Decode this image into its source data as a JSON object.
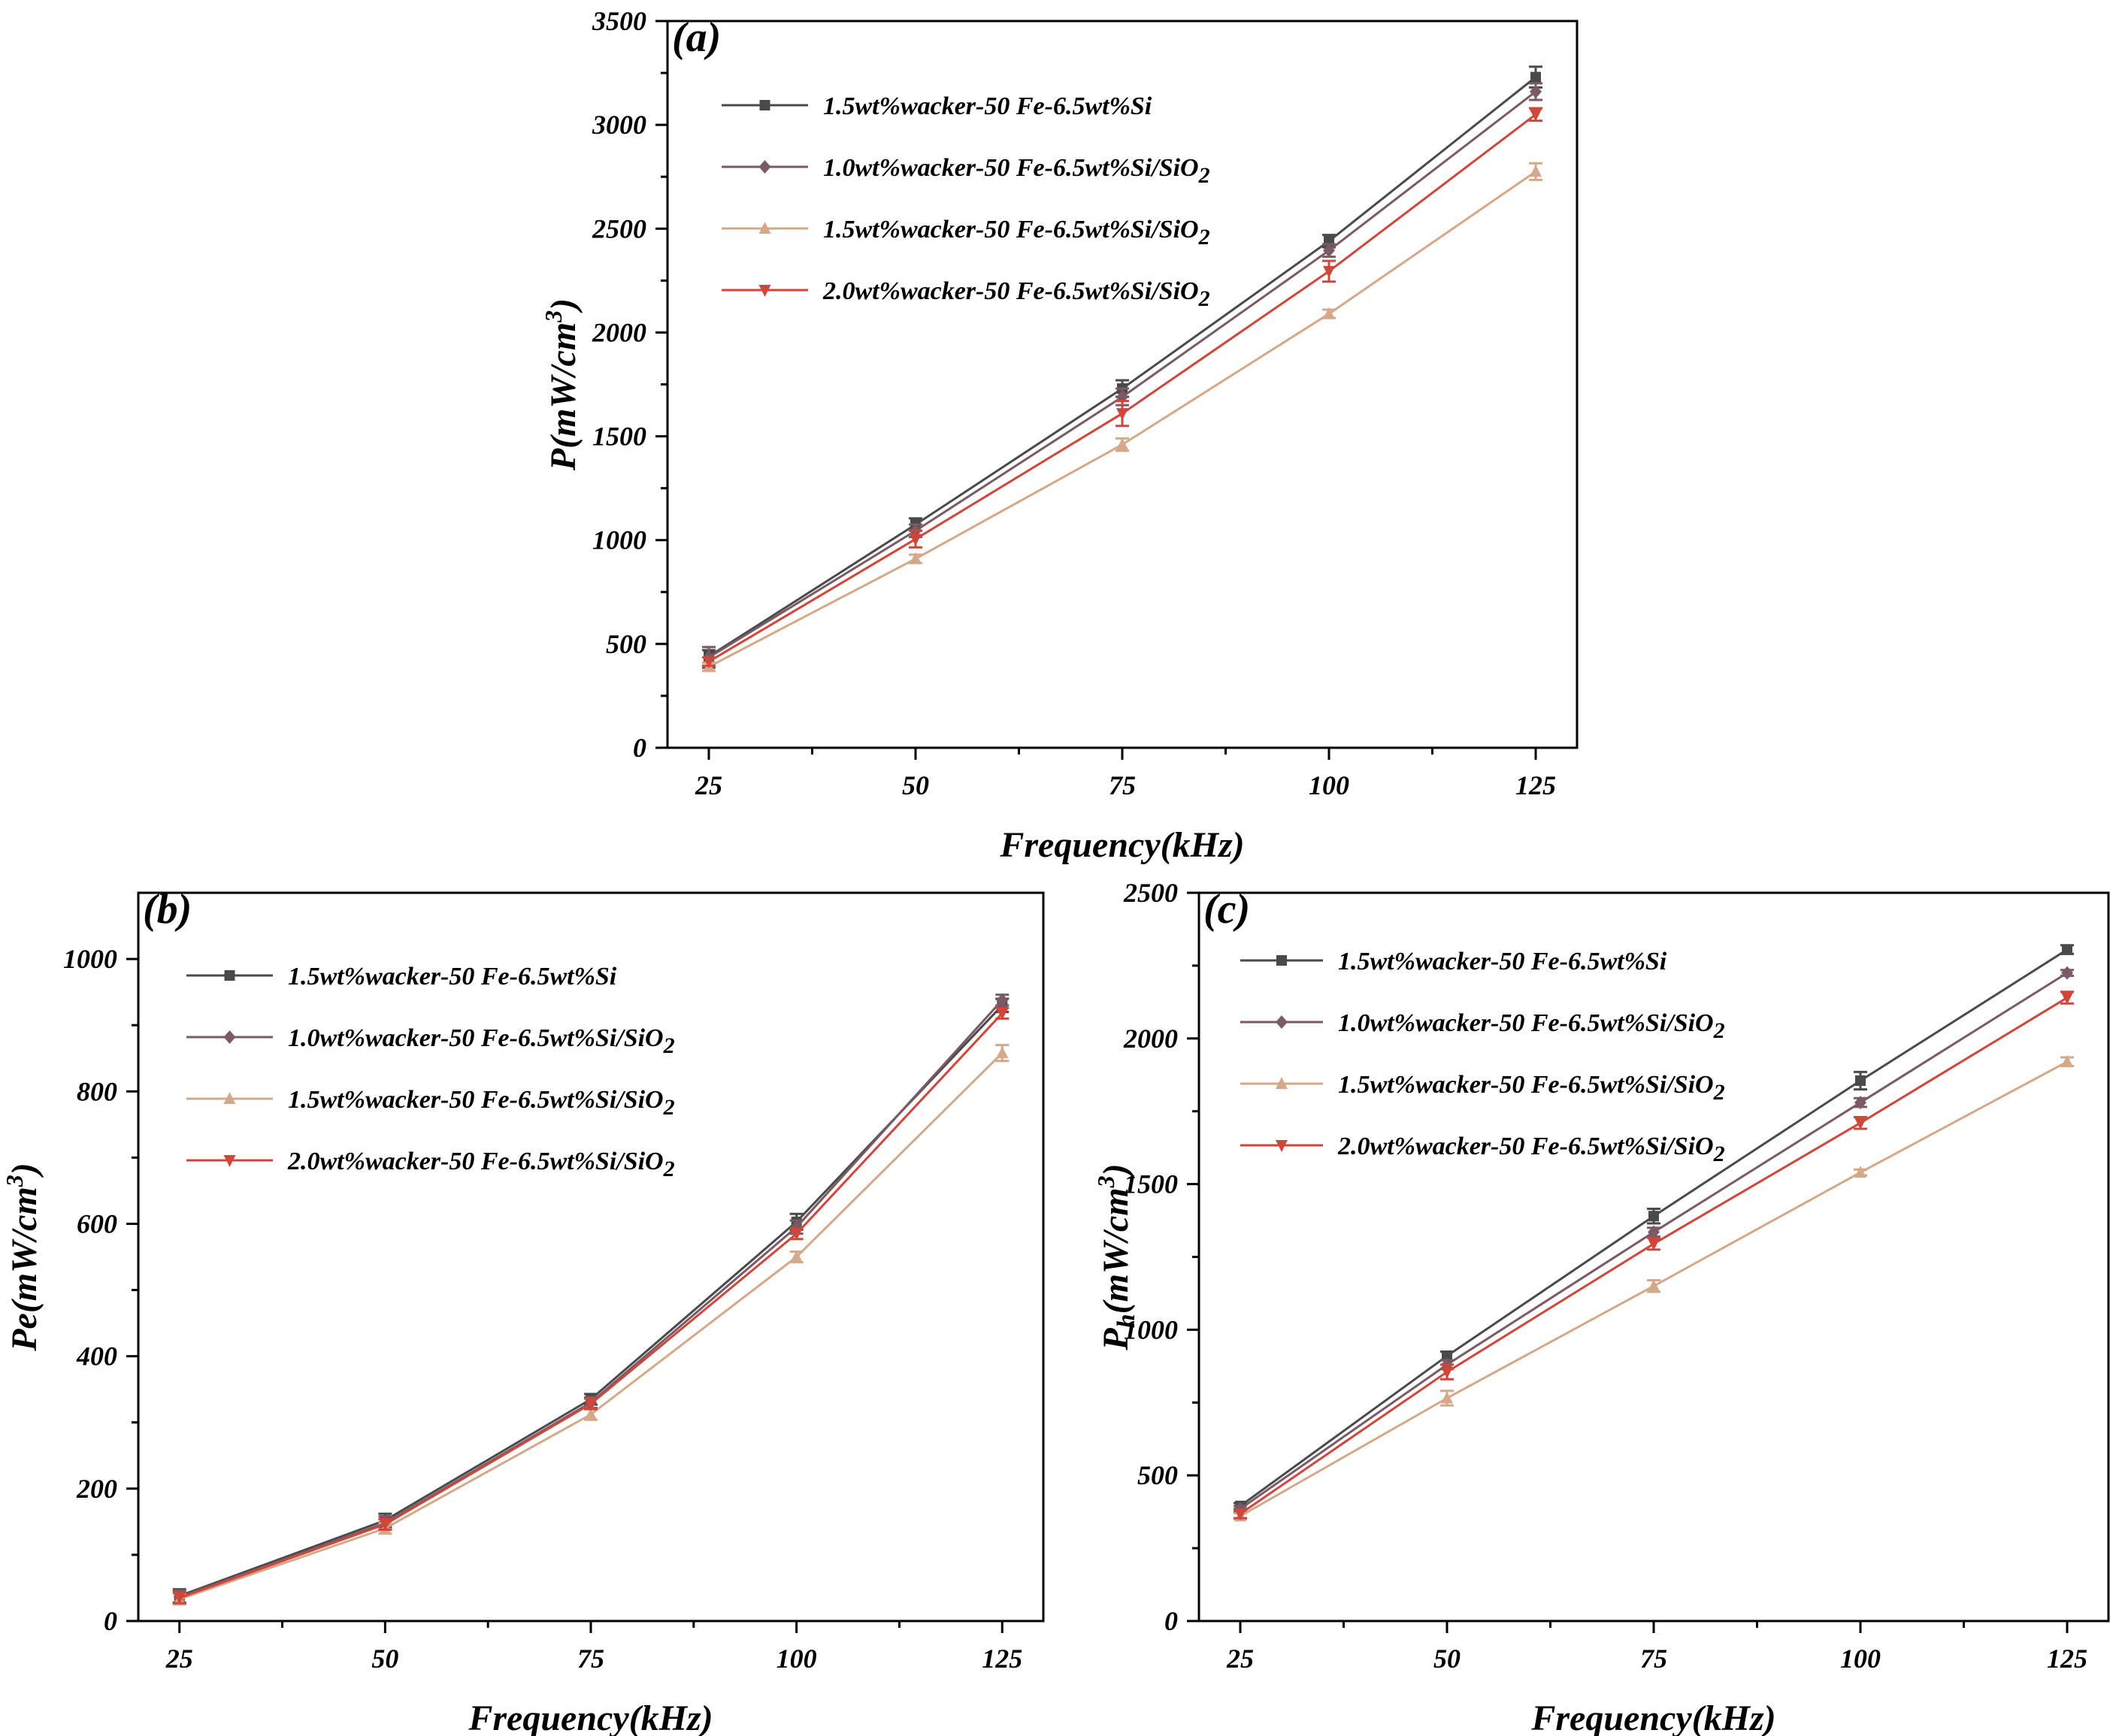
{
  "colors": {
    "series": [
      "#4a4a4a",
      "#7a5a66",
      "#d4a888",
      "#d0463a"
    ],
    "axis": "#000000"
  },
  "series_markers": [
    "square",
    "diamond",
    "triangle-up",
    "triangle-down"
  ],
  "chart_data": [
    {
      "id": "a",
      "panel_label": "(a)",
      "type": "line",
      "xlabel": "Frequency(kHz)",
      "ylabel_main": "P(mW/cm",
      "ylabel_sub": "",
      "ylabel_sup": "3",
      "ylabel_end": ")",
      "x": [
        25,
        50,
        75,
        100,
        125
      ],
      "xlim": [
        20,
        130
      ],
      "xticks": [
        25,
        50,
        75,
        100,
        125
      ],
      "ylim": [
        0,
        3500
      ],
      "yticks": [
        0,
        500,
        1000,
        1500,
        2000,
        2500,
        3000,
        3500
      ],
      "legend_position": "top-left",
      "series": [
        {
          "prefix": "1.5wt%wacker-50 Fe-6.5wt%Si",
          "sub": "",
          "values": [
            440,
            1075,
            1730,
            2440,
            3230
          ],
          "errors": [
            30,
            30,
            40,
            30,
            50
          ]
        },
        {
          "prefix": "1.0wt%wacker-50 Fe-6.5wt%Si/SiO",
          "sub": "2",
          "values": [
            435,
            1045,
            1690,
            2395,
            3160
          ],
          "errors": [
            50,
            30,
            40,
            30,
            40
          ]
        },
        {
          "prefix": "1.5wt%wacker-50 Fe-6.5wt%Si/SiO",
          "sub": "2",
          "values": [
            390,
            910,
            1460,
            2090,
            2775
          ],
          "errors": [
            20,
            20,
            30,
            20,
            40
          ]
        },
        {
          "prefix": "2.0wt%wacker-50 Fe-6.5wt%Si/SiO",
          "sub": "2",
          "values": [
            415,
            1005,
            1610,
            2295,
            3050
          ],
          "errors": [
            20,
            40,
            60,
            50,
            30
          ]
        }
      ]
    },
    {
      "id": "b",
      "panel_label": "(b)",
      "type": "line",
      "xlabel": "Frequency(kHz)",
      "ylabel_main": "Pe(mW/cm",
      "ylabel_sub": "",
      "ylabel_sup": "3",
      "ylabel_end": ")",
      "x": [
        25,
        50,
        75,
        100,
        125
      ],
      "xlim": [
        20,
        130
      ],
      "xticks": [
        25,
        50,
        75,
        100,
        125
      ],
      "ylim": [
        0,
        1100
      ],
      "yticks": [
        0,
        200,
        400,
        600,
        800,
        1000
      ],
      "legend_position": "top-left",
      "series": [
        {
          "prefix": "1.5wt%wacker-50 Fe-6.5wt%Si",
          "sub": "",
          "values": [
            38,
            152,
            335,
            603,
            930
          ],
          "errors": [
            10,
            10,
            8,
            12,
            10
          ]
        },
        {
          "prefix": "1.0wt%wacker-50 Fe-6.5wt%Si/SiO",
          "sub": "2",
          "values": [
            36,
            148,
            330,
            595,
            938
          ],
          "errors": [
            10,
            10,
            8,
            10,
            8
          ]
        },
        {
          "prefix": "1.5wt%wacker-50 Fe-6.5wt%Si/SiO",
          "sub": "2",
          "values": [
            33,
            140,
            312,
            550,
            858
          ],
          "errors": [
            8,
            8,
            8,
            8,
            12
          ]
        },
        {
          "prefix": "2.0wt%wacker-50 Fe-6.5wt%Si/SiO",
          "sub": "2",
          "values": [
            35,
            146,
            328,
            585,
            918
          ],
          "errors": [
            8,
            8,
            8,
            8,
            8
          ]
        }
      ]
    },
    {
      "id": "c",
      "panel_label": "(c)",
      "type": "line",
      "xlabel": "Frequency(kHz)",
      "ylabel_main": "P",
      "ylabel_sub": "h",
      "ylabel_sup": "3",
      "ylabel_mid": "(mW/cm",
      "ylabel_end": ")",
      "x": [
        25,
        50,
        75,
        100,
        125
      ],
      "xlim": [
        20,
        130
      ],
      "xticks": [
        25,
        50,
        75,
        100,
        125
      ],
      "ylim": [
        0,
        2500
      ],
      "yticks": [
        0,
        500,
        1000,
        1500,
        2000,
        2500
      ],
      "legend_position": "top-left",
      "series": [
        {
          "prefix": "1.5wt%wacker-50 Fe-6.5wt%Si",
          "sub": "",
          "values": [
            395,
            910,
            1390,
            1855,
            2305
          ],
          "errors": [
            10,
            15,
            25,
            30,
            15
          ]
        },
        {
          "prefix": "1.0wt%wacker-50 Fe-6.5wt%Si/SiO",
          "sub": "2",
          "values": [
            385,
            880,
            1335,
            1780,
            2225
          ],
          "errors": [
            10,
            15,
            15,
            15,
            10
          ]
        },
        {
          "prefix": "1.5wt%wacker-50 Fe-6.5wt%Si/SiO",
          "sub": "2",
          "values": [
            360,
            765,
            1150,
            1540,
            1920
          ],
          "errors": [
            10,
            25,
            20,
            10,
            15
          ]
        },
        {
          "prefix": "2.0wt%wacker-50 Fe-6.5wt%Si/SiO",
          "sub": "2",
          "values": [
            368,
            855,
            1295,
            1710,
            2140
          ],
          "errors": [
            15,
            25,
            20,
            20,
            20
          ]
        }
      ]
    }
  ]
}
